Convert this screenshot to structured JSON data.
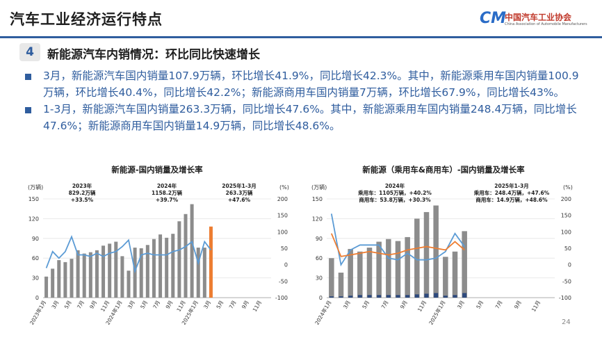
{
  "header": {
    "title": "汽车工业经济运行特点",
    "logo_cn": "中国汽车工业协会",
    "logo_en": "China Association of Automobile Manufacturers",
    "logo_mark": "CM"
  },
  "section": {
    "number": "4",
    "title": "新能源汽车内销情况：环比同比快速增长"
  },
  "bullets": [
    "3月，新能源汽车国内销量107.9万辆，环比增长41.9%，同比增长42.3%。其中，新能源乘用车国内销量100.9万辆，环比增长40.4%，同比增长42.2%；新能源商用车国内销量7万辆，环比增长67.9%，同比增长43%。",
    "1-3月，新能源汽车国内销量263.3万辆，同比增长47.6%。其中，新能源乘用车国内销量248.4万辆，同比增长47.6%；新能源商用车国内销量14.9万辆，同比增长48.6%。"
  ],
  "page_number": "24",
  "colors": {
    "accent_blue": "#2f5d9e",
    "bar_gray": "#8c8c8c",
    "bar_highlight": "#ed7d31",
    "line_blue": "#5b9bd5",
    "line_orange": "#ed7d31",
    "bar_blue_dark": "#2e4a7d"
  },
  "chart_data": [
    {
      "type": "bar",
      "title": "新能源-国内销量及增长率",
      "y_left_unit": "(万辆)",
      "y_right_unit": "(%)",
      "ylim_left": [
        0,
        150
      ],
      "yticks_left": [
        0,
        30,
        60,
        90,
        120,
        150
      ],
      "ylim_right": [
        -100,
        200
      ],
      "yticks_right": [
        -100,
        -50,
        0,
        50,
        100,
        150,
        200
      ],
      "xtick_labels": [
        "2023年1月",
        "3月",
        "5月",
        "7月",
        "9月",
        "11月",
        "2024年1月",
        "3月",
        "5月",
        "7月",
        "9月",
        "11月",
        "2025年1月",
        "3月",
        "5月",
        "7月",
        "9月",
        "11月"
      ],
      "annotations": [
        {
          "lines": [
            "2023年",
            "829.2万辆",
            "+33.5%"
          ]
        },
        {
          "lines": [
            "2024年",
            "1158.2万辆",
            "+39.7%"
          ]
        },
        {
          "lines": [
            "2025年1-3月",
            "263.3万辆",
            "+47.6%"
          ]
        }
      ],
      "series": [
        {
          "kind": "bar",
          "values": [
            32,
            44,
            57,
            54,
            59,
            72,
            67,
            69,
            72,
            79,
            82,
            85,
            63,
            41,
            76,
            75,
            80,
            89,
            96,
            91,
            97,
            116,
            127,
            142,
            76,
            76,
            108,
            null,
            null,
            null,
            null,
            null,
            null,
            null,
            null,
            null
          ],
          "highlight_index": 26
        },
        {
          "kind": "line",
          "values": [
            -10,
            40,
            20,
            40,
            85,
            30,
            30,
            25,
            35,
            25,
            35,
            40,
            55,
            75,
            -20,
            30,
            35,
            30,
            30,
            30,
            40,
            45,
            55,
            70,
            5,
            70,
            45,
            null,
            null,
            null,
            null,
            null,
            null,
            null,
            null,
            null
          ]
        }
      ]
    },
    {
      "type": "bar",
      "title": "新能源（乘用车&商用车）-国内销量及增长率",
      "y_left_unit": "(万辆)",
      "y_right_unit": "(%)",
      "ylim_left": [
        0,
        150
      ],
      "yticks_left": [
        0,
        30,
        60,
        90,
        120,
        150
      ],
      "ylim_right": [
        -100,
        200
      ],
      "yticks_right": [
        -100,
        -50,
        0,
        50,
        100,
        150,
        200
      ],
      "xtick_labels": [
        "2024年1月",
        "3月",
        "5月",
        "7月",
        "9月",
        "11月",
        "2025年1月",
        "3月",
        "5月",
        "7月",
        "9月",
        "11月"
      ],
      "annotations": [
        {
          "lines": [
            "2024年",
            "乘用车：1105万辆，+40.2%",
            "商用车：53.8万辆，+30.3%"
          ]
        },
        {
          "lines": [
            "2025年1-3月",
            "乘用车：248.4万辆，+47.6%",
            "商用车：14.9万辆，+48.6%"
          ]
        }
      ],
      "series": [
        {
          "kind": "bar",
          "values": [
            60,
            38,
            74,
            70,
            76,
            85,
            89,
            86,
            92,
            120,
            130,
            140,
            62,
            70,
            101,
            null,
            null,
            null,
            null,
            null,
            null,
            null,
            null,
            null
          ]
        },
        {
          "kind": "bar",
          "values": [
            2,
            2,
            3,
            4,
            4,
            4,
            4,
            4,
            4,
            5,
            6,
            7,
            3,
            4,
            7,
            null,
            null,
            null,
            null,
            null,
            null,
            null,
            null,
            null
          ]
        },
        {
          "kind": "line",
          "values": [
            155,
            0,
            45,
            60,
            60,
            60,
            20,
            15,
            35,
            15,
            15,
            20,
            40,
            95,
            55,
            null,
            null,
            null,
            null,
            null,
            null,
            null,
            null,
            null
          ]
        },
        {
          "kind": "line",
          "values": [
            95,
            25,
            30,
            35,
            40,
            35,
            30,
            35,
            45,
            50,
            55,
            50,
            45,
            70,
            45,
            null,
            null,
            null,
            null,
            null,
            null,
            null,
            null,
            null
          ]
        }
      ]
    }
  ]
}
